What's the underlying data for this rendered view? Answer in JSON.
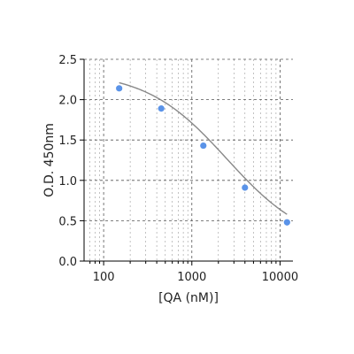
{
  "chart_data": {
    "type": "scatter",
    "xlabel": "[QA (nM)]",
    "ylabel": "O.D. 450nm",
    "x_scale": "log",
    "xlim": [
      60,
      14000
    ],
    "ylim": [
      0,
      2.5
    ],
    "grid": true,
    "x_major_ticks": [
      100,
      1000,
      10000
    ],
    "x_tick_labels": [
      "100",
      "1000",
      "10000"
    ],
    "y_ticks": [
      0,
      0.5,
      1.0,
      1.5,
      2.0,
      2.5
    ],
    "y_tick_labels": [
      "0.0",
      "0.5",
      "1.0",
      "1.5",
      "2.0",
      "2.5"
    ],
    "series": [
      {
        "x": [
          150,
          450,
          1350,
          4000,
          12000
        ],
        "y": [
          2.14,
          1.89,
          1.43,
          0.91,
          0.48
        ],
        "color": "#5a93e8"
      }
    ],
    "curve": {
      "type": "four-parameter-logistic",
      "color": "#888888",
      "bottom": 0.18,
      "top": 2.35,
      "ec50": 2500,
      "hill": 0.95
    }
  }
}
